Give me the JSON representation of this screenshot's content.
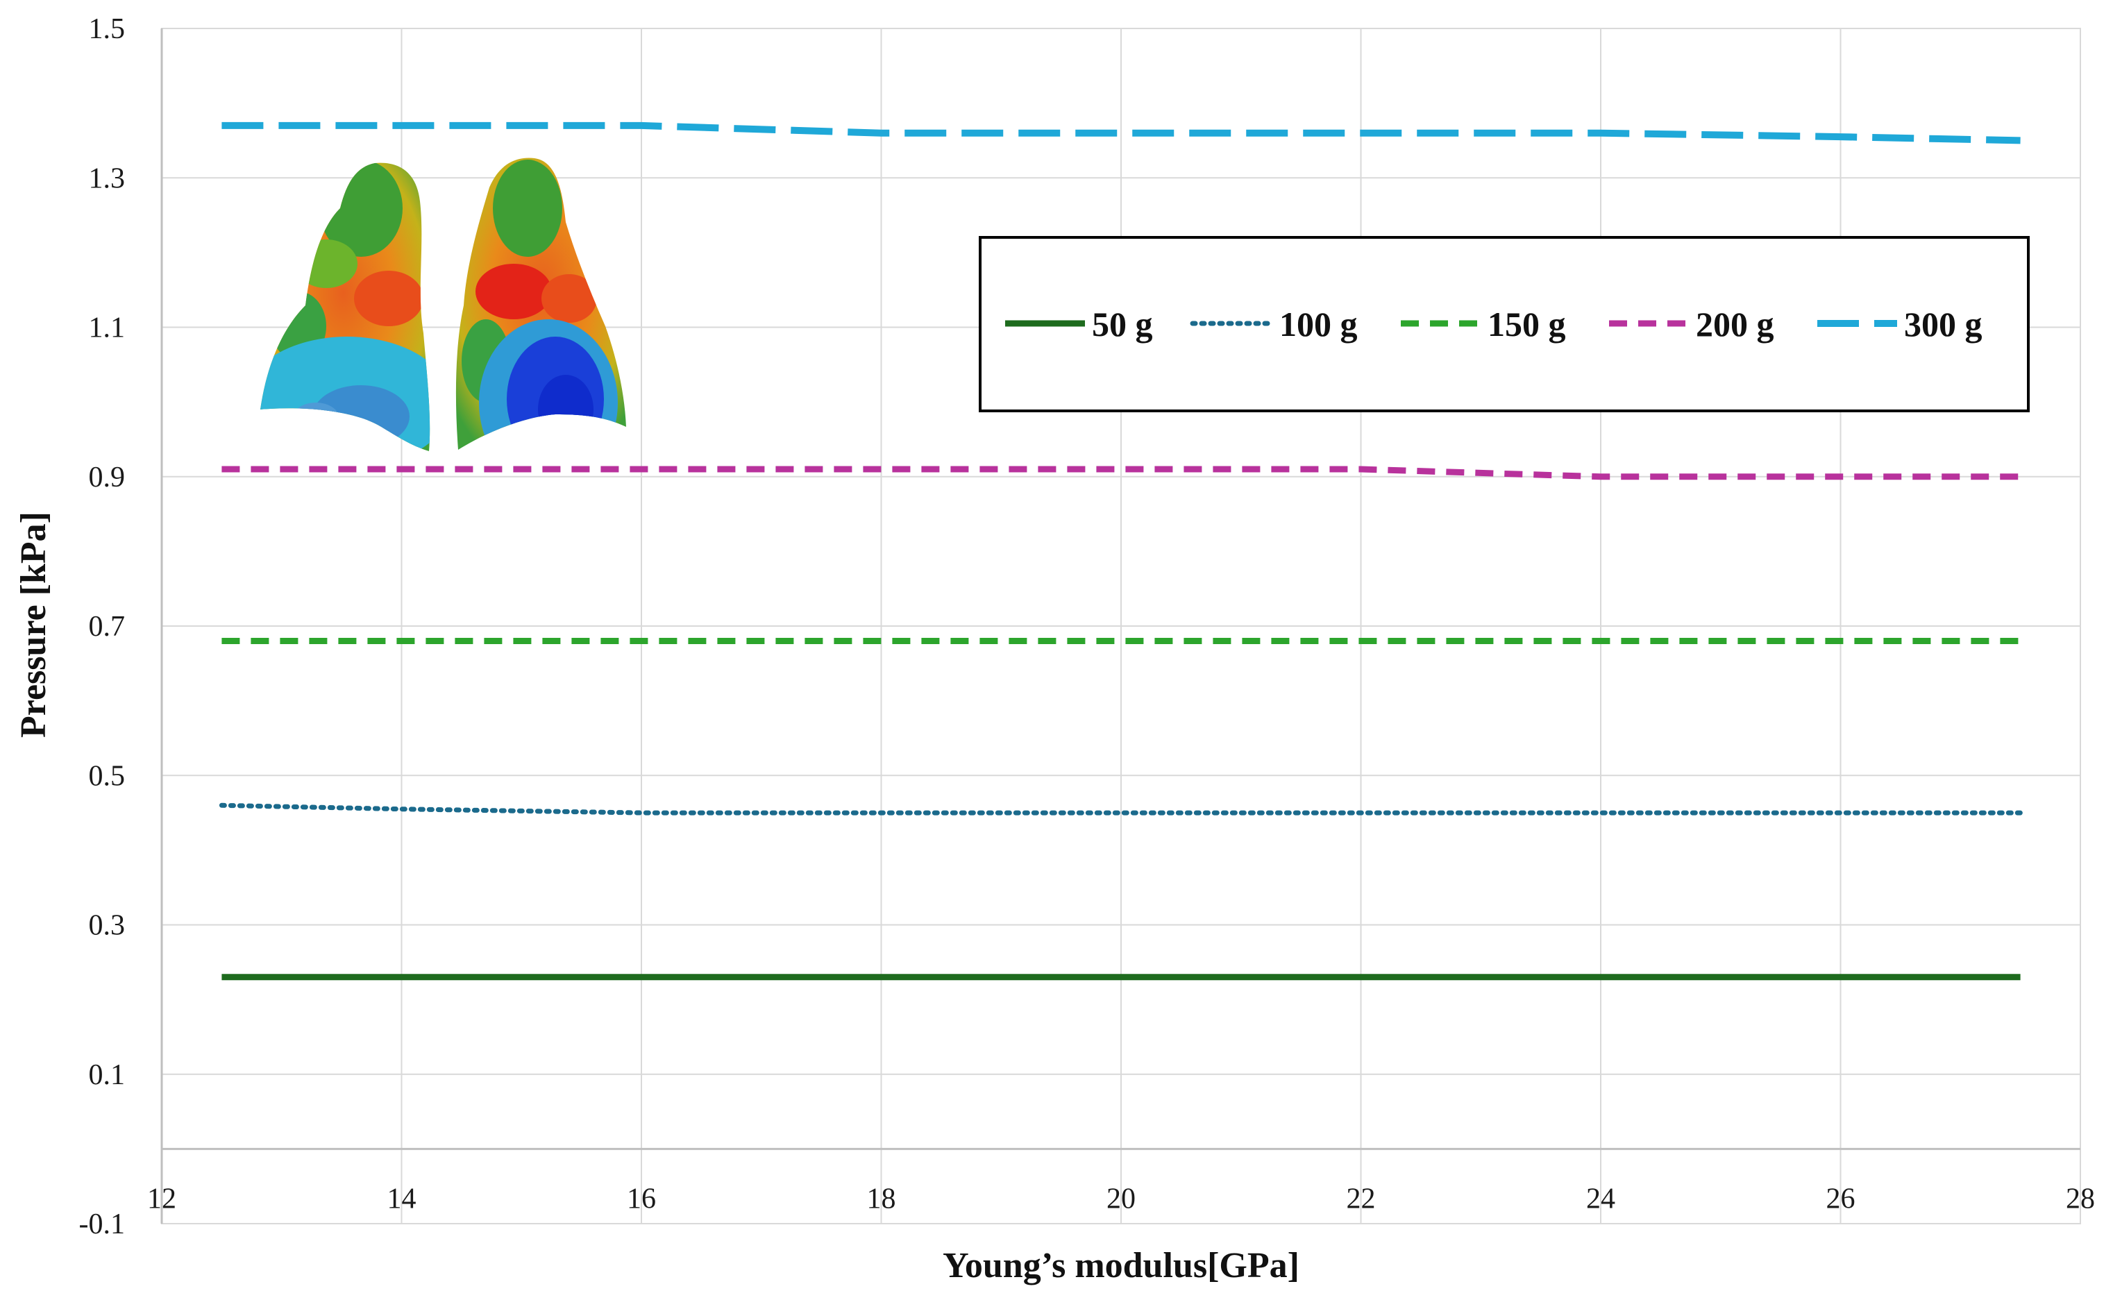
{
  "chart_data": {
    "type": "line",
    "title": "",
    "xlabel": "Young’s modulus[GPa]",
    "ylabel": "Pressure [kPa]",
    "xlim": [
      12,
      28
    ],
    "ylim": [
      -0.1,
      1.5
    ],
    "x_ticks": [
      12,
      14,
      16,
      18,
      20,
      22,
      24,
      26,
      28
    ],
    "x_tick_labels": [
      "12",
      "14",
      "16",
      "18",
      "20",
      "22",
      "24",
      "26",
      "28"
    ],
    "y_ticks": [
      -0.1,
      0.1,
      0.3,
      0.5,
      0.7,
      0.9,
      1.1,
      1.3,
      1.5
    ],
    "y_tick_labels": [
      "-0.1",
      "0.1",
      "0.3",
      "0.5",
      "0.7",
      "0.9",
      "1.1",
      "1.3",
      "1.5"
    ],
    "grid": true,
    "legend_position": "top-right",
    "inset_image": "colored 3D lung surface pressure map (two lungs)",
    "series": [
      {
        "name": "50 g",
        "color": "#1e6b1e",
        "style": "solid",
        "x": [
          12.5,
          14,
          16,
          18,
          20,
          22,
          24,
          26,
          27.5
        ],
        "y": [
          0.23,
          0.23,
          0.23,
          0.23,
          0.23,
          0.23,
          0.23,
          0.23,
          0.23
        ]
      },
      {
        "name": "100 g",
        "color": "#1b6a8c",
        "style": "dotted",
        "x": [
          12.5,
          14,
          16,
          18,
          20,
          22,
          24,
          26,
          27.5
        ],
        "y": [
          0.46,
          0.455,
          0.45,
          0.45,
          0.45,
          0.45,
          0.45,
          0.45,
          0.45
        ]
      },
      {
        "name": "150 g",
        "color": "#2ca52c",
        "style": "dashed",
        "x": [
          12.5,
          14,
          16,
          18,
          20,
          22,
          24,
          26,
          27.5
        ],
        "y": [
          0.68,
          0.68,
          0.68,
          0.68,
          0.68,
          0.68,
          0.68,
          0.68,
          0.68
        ]
      },
      {
        "name": "200 g",
        "color": "#b8329c",
        "style": "dashed",
        "x": [
          12.5,
          14,
          16,
          18,
          20,
          22,
          24,
          26,
          27.5
        ],
        "y": [
          0.91,
          0.91,
          0.91,
          0.91,
          0.91,
          0.91,
          0.9,
          0.9,
          0.9
        ]
      },
      {
        "name": "300 g",
        "color": "#1fa8d8",
        "style": "long-dash",
        "x": [
          12.5,
          14,
          16,
          18,
          20,
          22,
          24,
          26,
          27.5
        ],
        "y": [
          1.37,
          1.37,
          1.37,
          1.36,
          1.36,
          1.36,
          1.36,
          1.355,
          1.35
        ]
      }
    ]
  }
}
